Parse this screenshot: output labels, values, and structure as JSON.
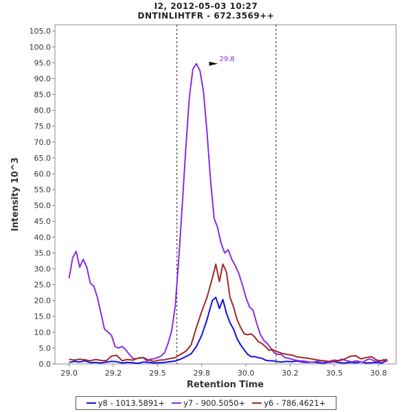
{
  "chart_data": {
    "type": "line",
    "title": "I2, 2012-05-03 10:27",
    "subtitle": "DNTINLIHTFR - 672.3569++",
    "xlabel": "Retention Time",
    "ylabel": "Intensity 10^3",
    "xlim": [
      28.92,
      30.85
    ],
    "ylim": [
      0,
      107
    ],
    "x_ticks": [
      "29.0",
      "29.2",
      "29.5",
      "29.8",
      "30.0",
      "30.2",
      "30.5",
      "30.8"
    ],
    "x_tick_values": [
      29.0,
      29.25,
      29.5,
      29.75,
      30.0,
      30.25,
      30.5,
      30.75
    ],
    "y_ticks": [
      "0.0",
      "5.0",
      "10.0",
      "15.0",
      "20.0",
      "25.0",
      "30.0",
      "35.0",
      "40.0",
      "45.0",
      "50.0",
      "55.0",
      "60.0",
      "65.0",
      "70.0",
      "75.0",
      "80.0",
      "85.0",
      "90.0",
      "95.0",
      "100.0",
      "105.0"
    ],
    "y_tick_values": [
      0,
      5,
      10,
      15,
      20,
      25,
      30,
      35,
      40,
      45,
      50,
      55,
      60,
      65,
      70,
      75,
      80,
      85,
      90,
      95,
      100,
      105
    ],
    "vlines": [
      29.61,
      30.17
    ],
    "peak_annotation": {
      "label": "29.8",
      "x": 29.85,
      "y": 94.7
    },
    "series": [
      {
        "name": "y8 - 1013.5891+",
        "color": "#1010e0",
        "x": [
          29.0,
          29.03,
          29.06,
          29.09,
          29.12,
          29.15,
          29.18,
          29.21,
          29.24,
          29.27,
          29.3,
          29.33,
          29.36,
          29.39,
          29.42,
          29.45,
          29.48,
          29.51,
          29.54,
          29.57,
          29.6,
          29.63,
          29.66,
          29.69,
          29.72,
          29.75,
          29.78,
          29.81,
          29.83,
          29.85,
          29.87,
          29.89,
          29.91,
          29.93,
          29.95,
          29.97,
          29.99,
          30.01,
          30.03,
          30.05,
          30.07,
          30.09,
          30.11,
          30.13,
          30.15,
          30.17,
          30.2,
          30.23,
          30.26,
          30.29,
          30.32,
          30.35,
          30.38,
          30.41,
          30.44,
          30.47,
          30.5,
          30.53,
          30.56,
          30.59,
          30.62,
          30.65,
          30.68,
          30.71,
          30.74,
          30.77,
          30.8
        ],
        "values": [
          0.5,
          0.8,
          0.6,
          1.0,
          0.4,
          0.5,
          0.3,
          0.6,
          0.8,
          0.7,
          0.3,
          0.5,
          0.4,
          0.2,
          0.6,
          0.5,
          0.3,
          0.4,
          0.5,
          0.7,
          0.9,
          1.5,
          2.3,
          3.2,
          5.5,
          9.0,
          14.0,
          20.0,
          21.0,
          17.5,
          20.3,
          16.0,
          13.0,
          11.0,
          8.0,
          6.0,
          4.5,
          3.0,
          2.3,
          2.3,
          2.0,
          1.8,
          1.2,
          1.0,
          1.0,
          0.8,
          0.6,
          0.8,
          0.7,
          0.9,
          0.6,
          0.5,
          0.6,
          0.4,
          0.3,
          0.5,
          0.7,
          0.4,
          0.3,
          0.5,
          0.4,
          0.6,
          0.3,
          0.4,
          0.5,
          0.3,
          1.2
        ]
      },
      {
        "name": "y7 - 900.5050+",
        "color": "#8a2be2",
        "x": [
          29.0,
          29.02,
          29.04,
          29.06,
          29.08,
          29.1,
          29.12,
          29.14,
          29.16,
          29.18,
          29.2,
          29.22,
          29.24,
          29.26,
          29.28,
          29.3,
          29.32,
          29.34,
          29.36,
          29.38,
          29.4,
          29.42,
          29.44,
          29.46,
          29.48,
          29.5,
          29.52,
          29.54,
          29.56,
          29.58,
          29.6,
          29.62,
          29.64,
          29.66,
          29.68,
          29.7,
          29.72,
          29.74,
          29.76,
          29.78,
          29.8,
          29.82,
          29.84,
          29.86,
          29.88,
          29.9,
          29.92,
          29.94,
          29.96,
          29.98,
          30.0,
          30.02,
          30.04,
          30.06,
          30.08,
          30.1,
          30.12,
          30.14,
          30.16,
          30.18,
          30.2,
          30.22,
          30.24,
          30.26,
          30.28,
          30.3,
          30.32,
          30.34,
          30.36,
          30.38,
          30.4,
          30.42,
          30.44,
          30.46,
          30.48,
          30.5,
          30.52,
          30.54,
          30.56,
          30.58,
          30.6,
          30.62,
          30.64,
          30.66,
          30.68,
          30.7,
          30.72,
          30.74,
          30.76,
          30.78,
          30.8
        ],
        "values": [
          27.0,
          33.5,
          35.5,
          30.5,
          33.0,
          30.5,
          25.5,
          24.5,
          21.0,
          16.0,
          11.0,
          10.0,
          9.0,
          5.5,
          5.0,
          5.5,
          4.5,
          3.0,
          1.8,
          1.6,
          2.0,
          1.9,
          1.0,
          1.5,
          1.6,
          2.0,
          2.5,
          3.5,
          6.5,
          10.5,
          18.0,
          33.0,
          50.0,
          68.0,
          84.0,
          93.0,
          94.7,
          92.5,
          86.0,
          73.0,
          58.0,
          46.0,
          43.0,
          38.0,
          35.0,
          36.0,
          33.0,
          31.0,
          28.5,
          25.0,
          21.0,
          18.0,
          17.0,
          13.0,
          9.5,
          7.5,
          6.5,
          5.0,
          3.5,
          3.0,
          3.0,
          2.0,
          1.8,
          1.5,
          1.2,
          1.0,
          0.9,
          0.8,
          0.6,
          0.5,
          0.8,
          1.0,
          0.9,
          0.6,
          0.5,
          0.8,
          1.0,
          1.5,
          1.2,
          0.9,
          0.6,
          1.0,
          0.8,
          0.5,
          1.2,
          1.6,
          1.1,
          0.7,
          0.9,
          1.4,
          0.8
        ],
        "x_alt": []
      },
      {
        "name": "y6 - 786.4621+",
        "color": "#a02828",
        "x": [
          29.0,
          29.03,
          29.06,
          29.09,
          29.12,
          29.15,
          29.18,
          29.21,
          29.24,
          29.27,
          29.3,
          29.33,
          29.36,
          29.39,
          29.42,
          29.45,
          29.48,
          29.51,
          29.54,
          29.57,
          29.6,
          29.63,
          29.66,
          29.69,
          29.72,
          29.75,
          29.78,
          29.81,
          29.83,
          29.85,
          29.87,
          29.89,
          29.91,
          29.93,
          29.95,
          29.97,
          29.99,
          30.01,
          30.03,
          30.05,
          30.07,
          30.09,
          30.11,
          30.13,
          30.15,
          30.17,
          30.2,
          30.23,
          30.26,
          30.29,
          30.32,
          30.35,
          30.38,
          30.41,
          30.44,
          30.47,
          30.5,
          30.53,
          30.56,
          30.59,
          30.62,
          30.65,
          30.68,
          30.71,
          30.74,
          30.77,
          30.8
        ],
        "values": [
          1.5,
          1.2,
          1.5,
          1.3,
          1.0,
          1.4,
          1.1,
          1.0,
          2.5,
          2.7,
          1.0,
          1.4,
          1.2,
          1.8,
          2.0,
          1.2,
          0.8,
          1.2,
          1.3,
          1.7,
          2.0,
          3.0,
          4.0,
          6.0,
          11.5,
          16.5,
          21.0,
          27.0,
          31.5,
          26.0,
          31.5,
          29.0,
          21.0,
          18.0,
          14.0,
          11.5,
          9.5,
          9.2,
          9.5,
          8.5,
          7.0,
          6.5,
          5.5,
          4.3,
          4.5,
          4.0,
          3.4,
          3.0,
          2.8,
          2.2,
          2.0,
          1.8,
          1.5,
          1.2,
          1.0,
          0.8,
          1.2,
          1.0,
          1.6,
          2.4,
          2.6,
          1.6,
          2.0,
          2.3,
          1.2,
          1.0,
          1.4
        ]
      }
    ]
  }
}
